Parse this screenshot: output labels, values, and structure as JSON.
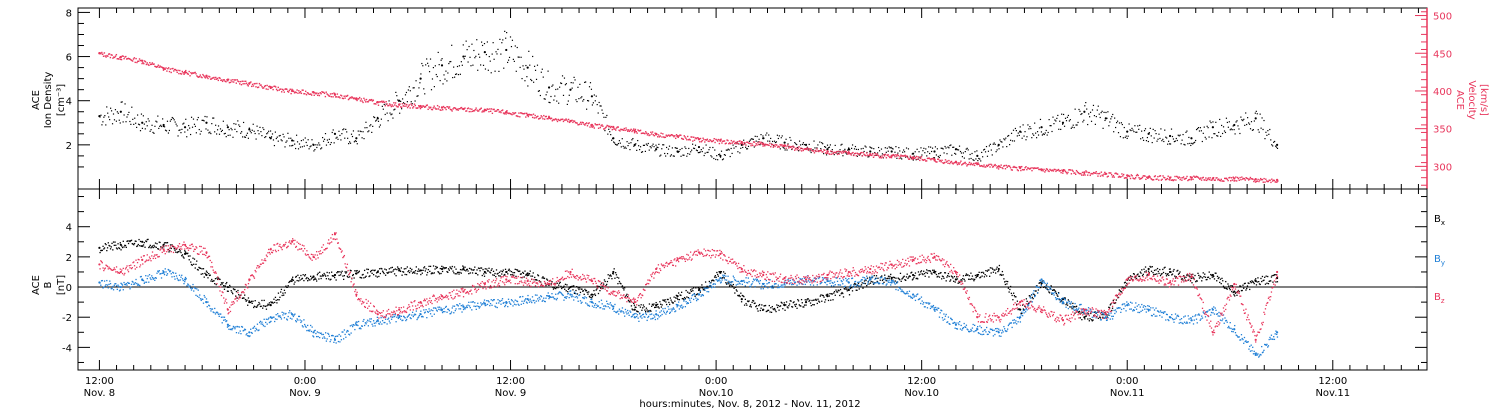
{
  "colors": {
    "black": "#000000",
    "density": "#000000",
    "velocity": "#e8365c",
    "bx": "#000000",
    "by": "#1f7fd6",
    "bz": "#e8365c"
  },
  "time_axis": {
    "xlabel": "hours:minutes, Nov. 8, 2012 - Nov. 11, 2012",
    "xlim_hours": [
      -1,
      62
    ],
    "major_ticks": [
      {
        "hour": 0,
        "time": "12:00",
        "date": "Nov. 8"
      },
      {
        "hour": 9.6,
        "time": "0:00",
        "date": "Nov. 9"
      },
      {
        "hour": 19.2,
        "time": "12:00",
        "date": "Nov. 9"
      },
      {
        "hour": 28.8,
        "time": "0:00",
        "date": "Nov.10"
      },
      {
        "hour": 38.4,
        "time": "12:00",
        "date": "Nov.10"
      },
      {
        "hour": 48,
        "time": "0:00",
        "date": "Nov.11"
      },
      {
        "hour": 57.6,
        "time": "12:00",
        "date": "Nov.11"
      }
    ]
  },
  "chart_data": [
    {
      "type": "scatter",
      "panel": "plasma",
      "ylabel_left": [
        "ACE",
        "Ion Density",
        "[cm⁻³]"
      ],
      "ylabel_right": [
        "ACE",
        "Velocity",
        "[km/s]"
      ],
      "ylim_left": [
        0,
        8.2
      ],
      "ylim_right": [
        270,
        510
      ],
      "yticks_left": [
        2,
        4,
        6,
        8
      ],
      "yticks_right": [
        300,
        350,
        400,
        450,
        500
      ],
      "series": [
        {
          "axis": "left",
          "x_hours": [
            0,
            1,
            2,
            3,
            4,
            5,
            6,
            7,
            8,
            9,
            10,
            11,
            12,
            13,
            14,
            15,
            16,
            17,
            18,
            19,
            20,
            21,
            22,
            23,
            24,
            25,
            26,
            27,
            28,
            29,
            30,
            31,
            32,
            33,
            34,
            35,
            36,
            37,
            38,
            39,
            40,
            41,
            42,
            43,
            44,
            45,
            46,
            47,
            48,
            49,
            50,
            51,
            52,
            53,
            54,
            55
          ],
          "values": [
            3.3,
            3.5,
            3.0,
            2.9,
            2.8,
            3.0,
            2.8,
            2.7,
            2.3,
            2.2,
            2.0,
            2.5,
            2.3,
            3.2,
            4.0,
            5.0,
            5.6,
            6.0,
            6.2,
            6.3,
            5.5,
            4.6,
            4.5,
            4.2,
            2.3,
            2.0,
            1.8,
            1.7,
            1.9,
            1.5,
            2.0,
            2.3,
            2.1,
            2.0,
            1.8,
            1.8,
            1.7,
            1.7,
            1.6,
            1.7,
            1.8,
            1.5,
            2.0,
            2.6,
            2.8,
            3.0,
            3.5,
            3.2,
            2.6,
            2.5,
            2.4,
            2.3,
            2.8,
            2.9,
            3.2,
            2.0
          ]
        },
        {
          "axis": "right",
          "x_hours": [
            0,
            1,
            2,
            3,
            4,
            5,
            6,
            7,
            8,
            9,
            10,
            11,
            12,
            13,
            14,
            15,
            16,
            17,
            18,
            19,
            20,
            21,
            22,
            23,
            24,
            25,
            26,
            27,
            28,
            29,
            30,
            31,
            32,
            33,
            34,
            35,
            36,
            37,
            38,
            39,
            40,
            41,
            42,
            43,
            44,
            45,
            46,
            47,
            48,
            49,
            50,
            51,
            52,
            53,
            54,
            55
          ],
          "values": [
            450,
            445,
            440,
            430,
            425,
            420,
            415,
            410,
            405,
            400,
            398,
            395,
            390,
            385,
            382,
            380,
            378,
            376,
            375,
            372,
            368,
            365,
            360,
            355,
            352,
            347,
            343,
            340,
            336,
            334,
            332,
            330,
            327,
            323,
            320,
            318,
            316,
            314,
            312,
            309,
            306,
            303,
            300,
            298,
            296,
            294,
            292,
            290,
            288,
            286,
            285,
            285,
            284,
            284,
            283,
            282
          ]
        }
      ]
    },
    {
      "type": "scatter",
      "panel": "magnetic",
      "ylabel_left": [
        "ACE",
        "B",
        "[nT]"
      ],
      "ylim": [
        -5.5,
        6.5
      ],
      "yticks": [
        -4,
        -2,
        0,
        2,
        4
      ],
      "legend_position": "right",
      "series": [
        {
          "name_main": "B",
          "name_sub": "x",
          "key": "bx",
          "x_hours": [
            0,
            1,
            2,
            3,
            4,
            5,
            6,
            7,
            8,
            9,
            10,
            11,
            12,
            13,
            14,
            15,
            16,
            17,
            18,
            19,
            20,
            21,
            22,
            23,
            24,
            25,
            26,
            27,
            28,
            29,
            30,
            31,
            32,
            33,
            34,
            35,
            36,
            37,
            38,
            39,
            40,
            41,
            42,
            43,
            44,
            45,
            46,
            47,
            48,
            49,
            50,
            51,
            52,
            53,
            54,
            55
          ],
          "values": [
            2.6,
            2.8,
            3.0,
            2.8,
            2.2,
            0.8,
            0.0,
            -1.0,
            -1.2,
            0.5,
            0.7,
            0.8,
            0.9,
            1.0,
            1.1,
            1.1,
            1.2,
            1.2,
            1.0,
            1.0,
            0.9,
            0.2,
            0.0,
            -0.5,
            1.0,
            -1.5,
            -1.2,
            -0.6,
            -0.2,
            1.0,
            -0.8,
            -1.5,
            -1.2,
            -1.0,
            -0.6,
            -0.2,
            0.5,
            0.6,
            0.8,
            1.0,
            0.5,
            0.8,
            1.2,
            -1.5,
            0.3,
            -0.8,
            -2.0,
            -1.8,
            0.5,
            1.2,
            1.0,
            0.6,
            0.8,
            -0.3,
            0.4,
            0.6
          ]
        },
        {
          "name_main": "B",
          "name_sub": "y",
          "key": "by",
          "x_hours": [
            0,
            1,
            2,
            3,
            4,
            5,
            6,
            7,
            8,
            9,
            10,
            11,
            12,
            13,
            14,
            15,
            16,
            17,
            18,
            19,
            20,
            21,
            22,
            23,
            24,
            25,
            26,
            27,
            28,
            29,
            30,
            31,
            32,
            33,
            34,
            35,
            36,
            37,
            38,
            39,
            40,
            41,
            42,
            43,
            44,
            45,
            46,
            47,
            48,
            49,
            50,
            51,
            52,
            53,
            54,
            55
          ],
          "values": [
            0.3,
            0.0,
            0.5,
            1.0,
            0.5,
            -1.0,
            -2.5,
            -3.0,
            -2.0,
            -1.8,
            -3.0,
            -3.5,
            -2.5,
            -2.2,
            -2.0,
            -1.8,
            -1.5,
            -1.3,
            -1.1,
            -1.0,
            -0.8,
            -0.6,
            -0.5,
            -1.0,
            -1.3,
            -2.0,
            -1.8,
            -1.2,
            -0.5,
            0.6,
            0.4,
            0.2,
            0.3,
            0.5,
            0.4,
            0.3,
            0.5,
            0.3,
            -0.5,
            -1.5,
            -2.5,
            -2.8,
            -3.0,
            -2.0,
            0.5,
            -1.0,
            -1.5,
            -2.0,
            -1.2,
            -1.5,
            -2.0,
            -2.2,
            -1.5,
            -2.8,
            -4.5,
            -3.0
          ]
        },
        {
          "name_main": "B",
          "name_sub": "z",
          "key": "bz",
          "x_hours": [
            0,
            1,
            2,
            3,
            4,
            5,
            6,
            7,
            8,
            9,
            10,
            11,
            12,
            13,
            14,
            15,
            16,
            17,
            18,
            19,
            20,
            21,
            22,
            23,
            24,
            25,
            26,
            27,
            28,
            29,
            30,
            31,
            32,
            33,
            34,
            35,
            36,
            37,
            38,
            39,
            40,
            41,
            42,
            43,
            44,
            45,
            46,
            47,
            48,
            49,
            50,
            51,
            52,
            53,
            54,
            55
          ],
          "values": [
            1.5,
            1.0,
            1.8,
            2.5,
            2.8,
            2.3,
            -1.5,
            0.5,
            2.5,
            3.0,
            2.0,
            3.5,
            -0.5,
            -1.8,
            -1.5,
            -1.0,
            -0.6,
            -0.3,
            0.2,
            0.5,
            0.4,
            0.2,
            1.0,
            0.4,
            -0.3,
            -1.0,
            1.2,
            1.8,
            2.3,
            2.2,
            1.2,
            0.8,
            0.6,
            0.5,
            0.8,
            1.0,
            1.2,
            1.5,
            1.8,
            2.0,
            1.0,
            -2.0,
            -2.0,
            -1.0,
            -1.5,
            -2.2,
            -1.5,
            -1.8,
            0.5,
            0.8,
            0.3,
            0.7,
            -3.0,
            0.2,
            -3.5,
            1.0
          ]
        }
      ]
    }
  ]
}
